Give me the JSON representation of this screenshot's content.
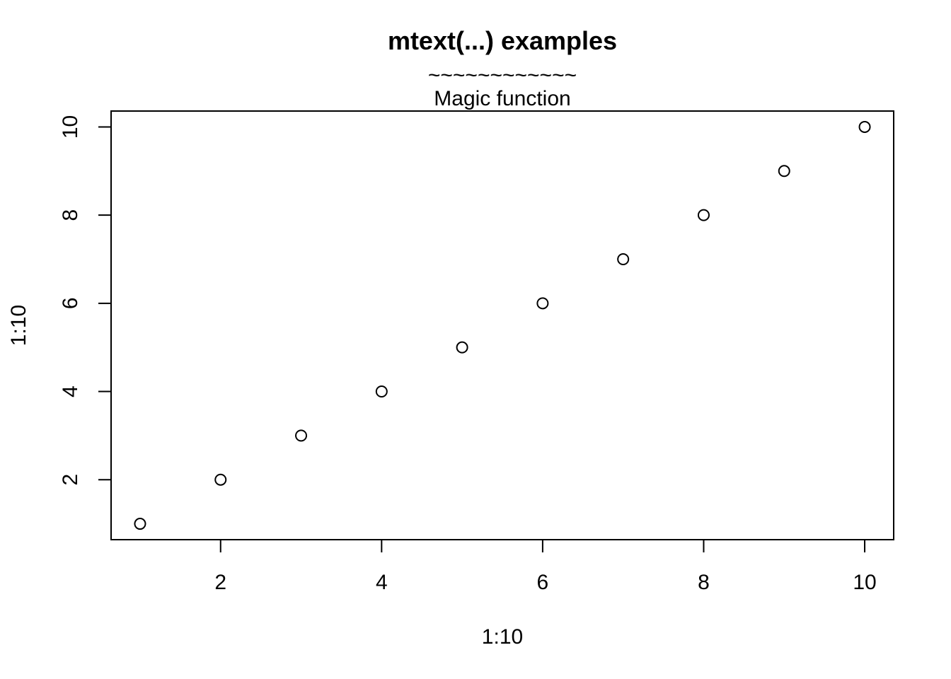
{
  "chart_data": {
    "type": "scatter",
    "title": "mtext(...) examples",
    "mtext": [
      "~~~~~~~~~~~~",
      "Magic function"
    ],
    "xlabel": "1:10",
    "ylabel": "1:10",
    "x": [
      1,
      2,
      3,
      4,
      5,
      6,
      7,
      8,
      9,
      10
    ],
    "y": [
      1,
      2,
      3,
      4,
      5,
      6,
      7,
      8,
      9,
      10
    ],
    "xlim": [
      0.64,
      10.36
    ],
    "ylim": [
      0.64,
      10.36
    ],
    "xticks": [
      2,
      4,
      6,
      8,
      10
    ],
    "yticks": [
      2,
      4,
      6,
      8,
      10
    ],
    "marker": "open-circle",
    "color": "#000000",
    "grid": false
  }
}
